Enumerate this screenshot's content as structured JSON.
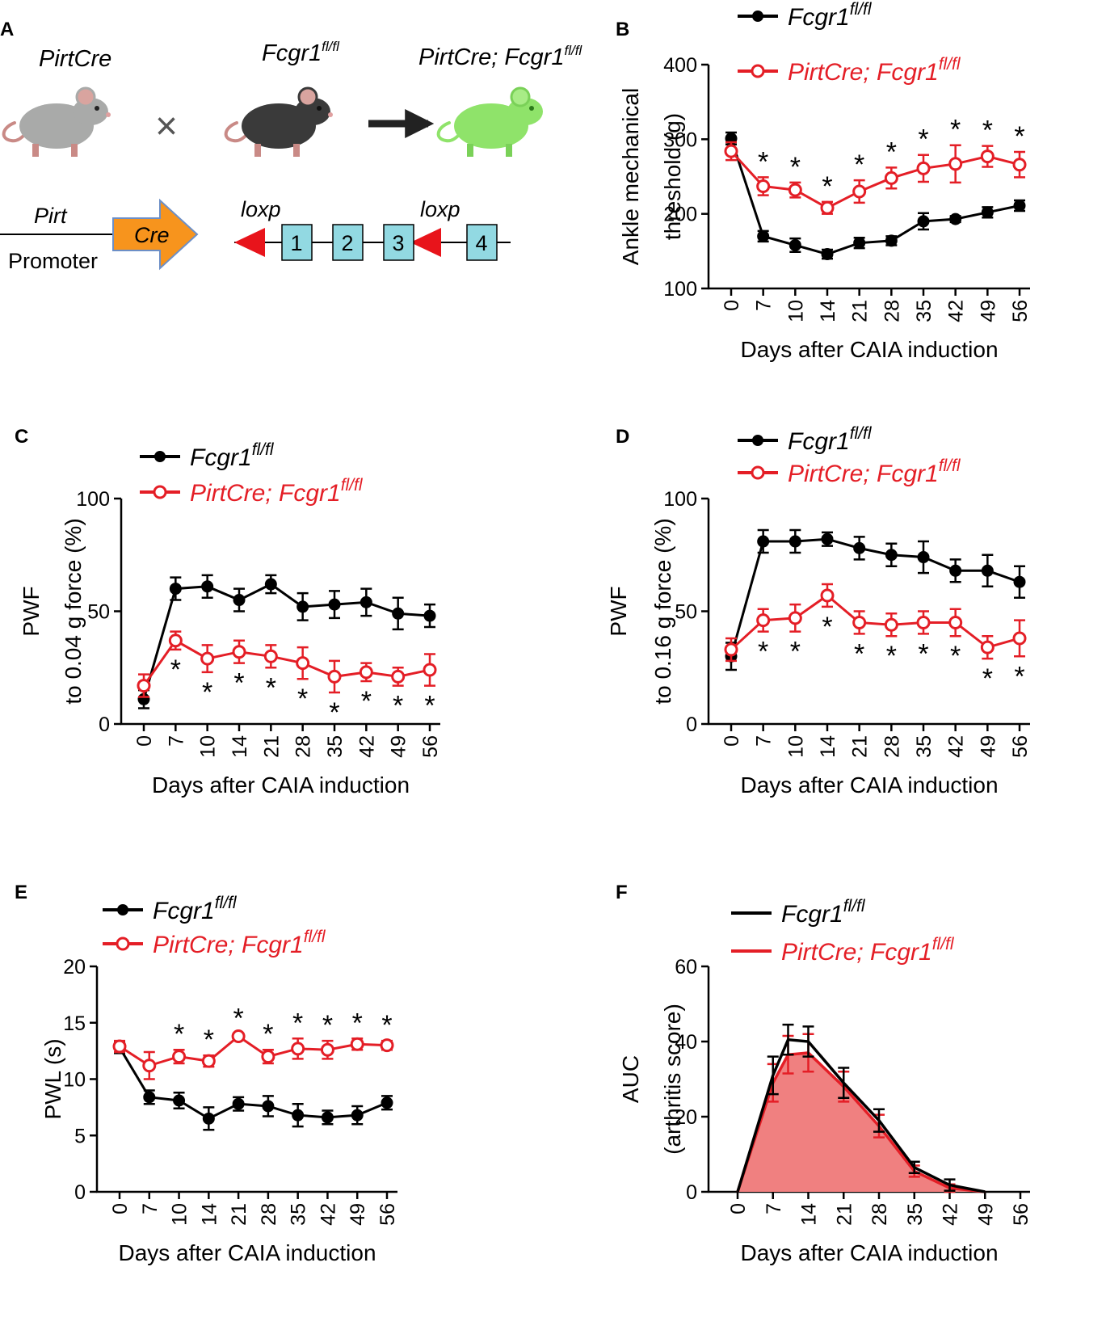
{
  "colors": {
    "wt": "#000000",
    "ko": "#e41e26",
    "ko_fill": "#f08080",
    "mouse_grey": "#a9aaa9",
    "mouse_black": "#3a3a3a",
    "mouse_green": "#8fe36a",
    "cre_arrow": "#f7941d",
    "exon": "#92d9e2",
    "loxp": "#e8141b"
  },
  "panel_a": {
    "label": "A",
    "strain1": "PirtCre",
    "strain2_base": "Fcgr1",
    "strain2_sup": "fl/fl",
    "strain3_base": "PirtCre; Fcgr1",
    "strain3_sup": "fl/fl",
    "cross": "×",
    "pirt": "Pirt",
    "cre": "Cre",
    "promoter": "Promoter",
    "loxp": "loxp",
    "exons": [
      "1",
      "2",
      "3",
      "4"
    ],
    "icons": [
      "pirtcre-mouse-icon",
      "fcgr1-mouse-icon",
      "cko-mouse-icon"
    ]
  },
  "legend": {
    "wt_base": "Fcgr1",
    "wt_sup": "fl/fl",
    "ko_base": "PirtCre; Fcgr1",
    "ko_sup": "fl/fl"
  },
  "chart_data": [
    {
      "id": "B",
      "label": "B",
      "type": "line",
      "ylabel": [
        "Ankle mechanical",
        "threshold (g)"
      ],
      "xlabel": "Days after CAIA induction",
      "categories": [
        "0",
        "7",
        "10",
        "14",
        "21",
        "28",
        "35",
        "42",
        "49",
        "56"
      ],
      "ylim": [
        100,
        400
      ],
      "yticks": [
        100,
        200,
        300,
        400
      ],
      "series": [
        {
          "name": "Fcgr1fl/fl",
          "values": [
            301,
            170,
            158,
            146,
            161,
            164,
            190,
            193,
            202,
            211
          ],
          "err": [
            8,
            7,
            9,
            6,
            7,
            6,
            11,
            4,
            7,
            7
          ]
        },
        {
          "name": "PirtCre; Fcgr1fl/fl",
          "values": [
            284,
            237,
            232,
            208,
            230,
            248,
            261,
            267,
            277,
            266
          ],
          "err": [
            12,
            12,
            10,
            8,
            15,
            14,
            18,
            25,
            14,
            17
          ]
        }
      ],
      "stars": [
        "",
        "*",
        "*",
        "*",
        "*",
        "*",
        "*",
        "*",
        "*",
        "*"
      ],
      "stars_pos": "above-red"
    },
    {
      "id": "C",
      "label": "C",
      "type": "line",
      "ylabel": [
        "PWF",
        "to 0.04 g force (%)"
      ],
      "xlabel": "Days after CAIA induction",
      "categories": [
        "0",
        "7",
        "10",
        "14",
        "21",
        "28",
        "35",
        "42",
        "49",
        "56"
      ],
      "ylim": [
        0,
        100
      ],
      "yticks": [
        0,
        50,
        100
      ],
      "series": [
        {
          "name": "Fcgr1fl/fl",
          "values": [
            11,
            60,
            61,
            55,
            62,
            52,
            53,
            54,
            49,
            48
          ],
          "err": [
            4,
            5,
            5,
            5,
            4,
            6,
            6,
            6,
            7,
            5
          ]
        },
        {
          "name": "PirtCre; Fcgr1fl/fl",
          "values": [
            17,
            37,
            29,
            32,
            30,
            27,
            21,
            23,
            21,
            24
          ],
          "err": [
            5,
            4,
            6,
            5,
            5,
            7,
            7,
            4,
            4,
            7
          ]
        }
      ],
      "stars": [
        "",
        "*",
        "*",
        "*",
        "*",
        "*",
        "*",
        "*",
        "*",
        "*"
      ],
      "stars_pos": "below-red"
    },
    {
      "id": "D",
      "label": "D",
      "type": "line",
      "ylabel": [
        "PWF",
        "to 0.16 g force (%)"
      ],
      "xlabel": "Days after CAIA induction",
      "categories": [
        "0",
        "7",
        "10",
        "14",
        "21",
        "28",
        "35",
        "42",
        "49",
        "56"
      ],
      "ylim": [
        0,
        100
      ],
      "yticks": [
        0,
        50,
        100
      ],
      "series": [
        {
          "name": "Fcgr1fl/fl",
          "values": [
            30,
            81,
            81,
            82,
            78,
            75,
            74,
            68,
            68,
            63
          ],
          "err": [
            6,
            5,
            5,
            3,
            5,
            5,
            7,
            5,
            7,
            7
          ]
        },
        {
          "name": "PirtCre; Fcgr1fl/fl",
          "values": [
            33,
            46,
            47,
            57,
            45,
            44,
            45,
            45,
            34,
            38
          ],
          "err": [
            5,
            5,
            6,
            5,
            5,
            5,
            5,
            6,
            5,
            8
          ]
        }
      ],
      "stars": [
        "",
        "*",
        "*",
        "*",
        "*",
        "*",
        "*",
        "*",
        "*",
        "*"
      ],
      "stars_pos": "below-red"
    },
    {
      "id": "E",
      "label": "E",
      "type": "line",
      "ylabel": [
        "PWL (s)"
      ],
      "xlabel": "Days after CAIA induction",
      "categories": [
        "0",
        "7",
        "10",
        "14",
        "21",
        "28",
        "35",
        "42",
        "49",
        "56"
      ],
      "ylim": [
        0,
        20
      ],
      "yticks": [
        0,
        5,
        10,
        15,
        20
      ],
      "series": [
        {
          "name": "Fcgr1fl/fl",
          "values": [
            12.8,
            8.4,
            8.1,
            6.5,
            7.8,
            7.6,
            6.8,
            6.6,
            6.8,
            7.9
          ],
          "err": [
            0.5,
            0.6,
            0.7,
            1.0,
            0.6,
            0.9,
            1.0,
            0.6,
            0.8,
            0.6
          ]
        },
        {
          "name": "PirtCre; Fcgr1fl/fl",
          "values": [
            12.9,
            11.2,
            12.0,
            11.6,
            13.8,
            12.0,
            12.7,
            12.6,
            13.1,
            13.0
          ],
          "err": [
            0.5,
            1.2,
            0.6,
            0.5,
            0.2,
            0.6,
            0.9,
            0.8,
            0.5,
            0.4
          ]
        }
      ],
      "stars": [
        "",
        "",
        "*",
        "*",
        "*",
        "*",
        "*",
        "*",
        "*",
        "*"
      ],
      "stars_pos": "above-red"
    },
    {
      "id": "F",
      "label": "F",
      "type": "area",
      "ylabel": [
        "AUC",
        "(arthritis score)"
      ],
      "xlabel": "Days after CAIA induction",
      "xticks": [
        0,
        7,
        14,
        21,
        28,
        35,
        42,
        49,
        56
      ],
      "xlim": [
        0,
        56
      ],
      "ylim": [
        0,
        60
      ],
      "yticks": [
        0,
        20,
        40,
        60
      ],
      "series": [
        {
          "name": "Fcgr1fl/fl",
          "x": [
            0,
            7,
            10,
            14,
            21,
            28,
            35,
            42,
            49
          ],
          "values": [
            0,
            31,
            40.5,
            40,
            29,
            19,
            6.5,
            1.8,
            0
          ],
          "err": [
            0,
            5,
            4,
            4,
            4,
            3,
            1.5,
            1.5,
            0
          ]
        },
        {
          "name": "PirtCre; Fcgr1fl/fl",
          "x": [
            0,
            7,
            10,
            14,
            21,
            28,
            35,
            42,
            49
          ],
          "values": [
            0,
            29,
            36.5,
            37,
            28,
            17.5,
            5.5,
            1,
            0
          ],
          "err": [
            0,
            5,
            5,
            5,
            4,
            3,
            1.5,
            1,
            0
          ]
        }
      ]
    }
  ]
}
